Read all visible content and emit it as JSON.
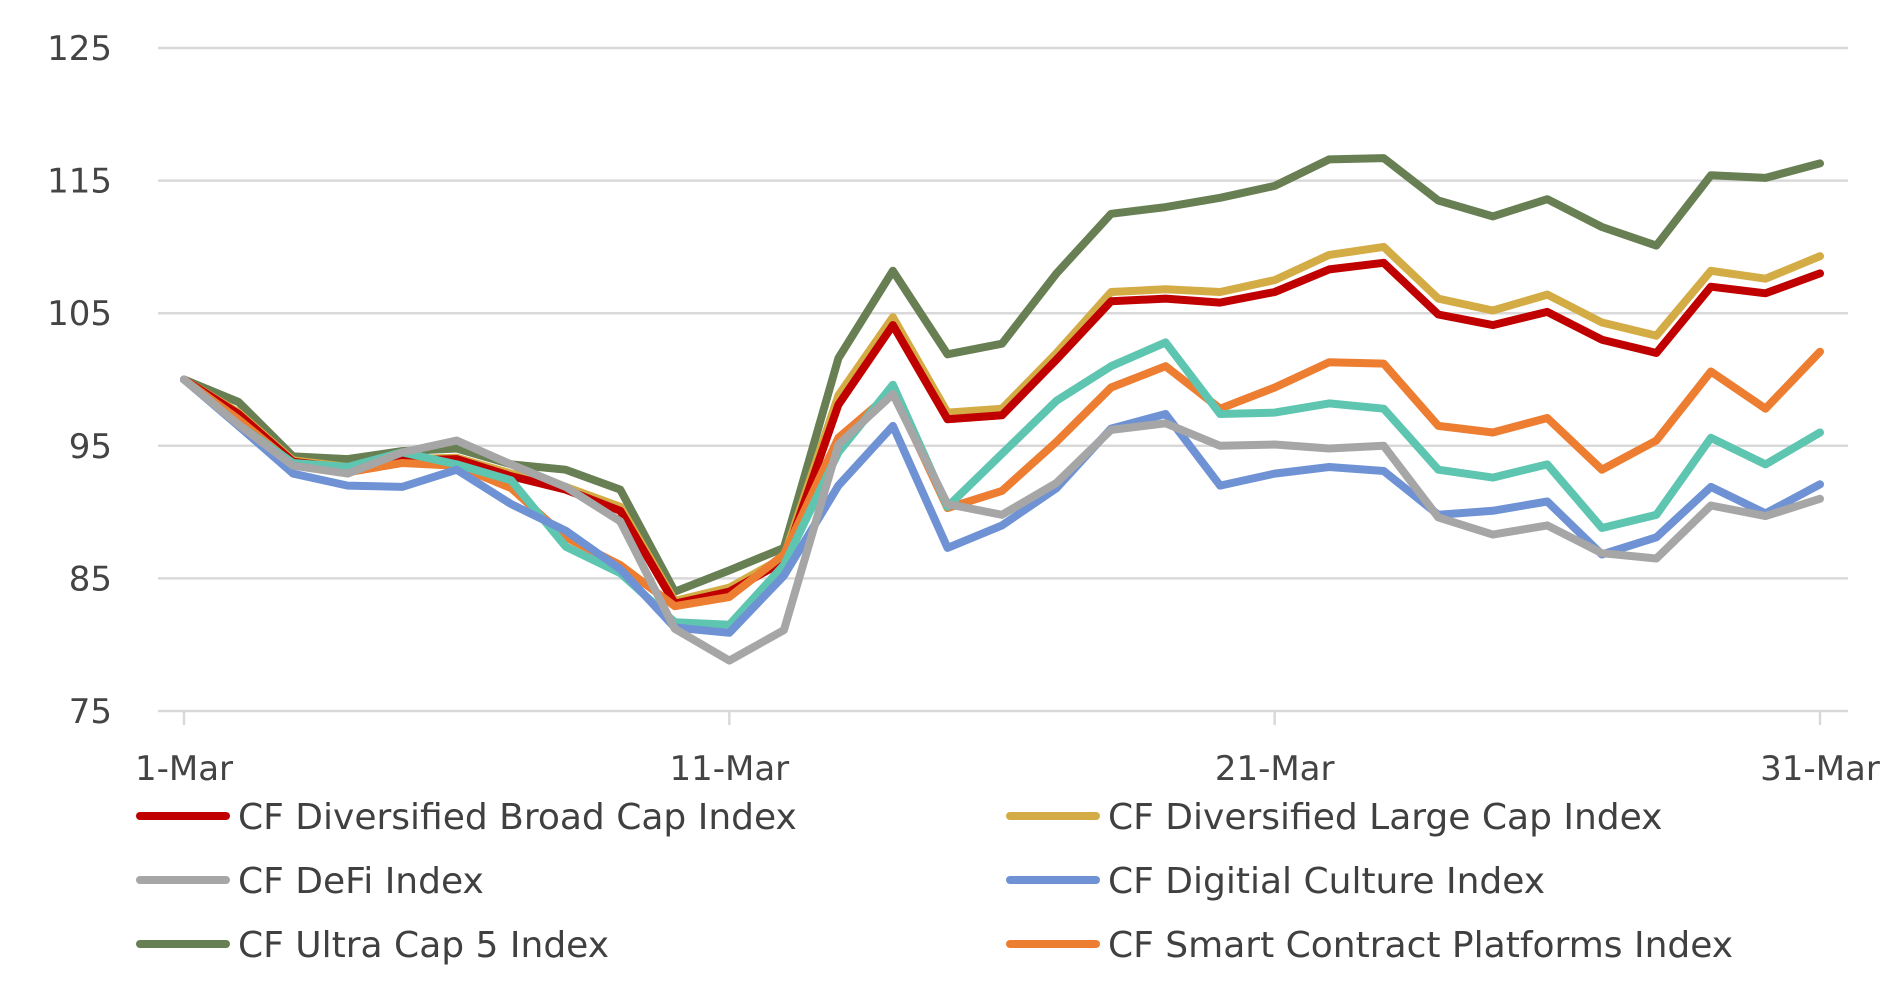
{
  "chart_data": {
    "type": "line",
    "title": "",
    "xlabel": "",
    "ylabel": "",
    "ylim": [
      75,
      125
    ],
    "yticks": [
      75,
      85,
      95,
      105,
      115,
      125
    ],
    "xlim": [
      1,
      31
    ],
    "xticks": [
      {
        "day": 1,
        "label": "1-Mar"
      },
      {
        "day": 11,
        "label": "11-Mar"
      },
      {
        "day": 21,
        "label": "21-Mar"
      },
      {
        "day": 31,
        "label": "31-Mar"
      }
    ],
    "grid": true,
    "legend_position": "bottom",
    "x": [
      1,
      2,
      3,
      4,
      5,
      6,
      7,
      8,
      9,
      10,
      11,
      12,
      13,
      14,
      15,
      16,
      17,
      18,
      19,
      20,
      21,
      22,
      23,
      24,
      25,
      26,
      27,
      28,
      29,
      30,
      31
    ],
    "series": [
      {
        "name": "CF Ultra Cap 5 Index",
        "color": "#677f53",
        "values": [
          100,
          98.3,
          94.2,
          94.0,
          94.6,
          94.8,
          93.6,
          93.2,
          91.7,
          84.0,
          85.6,
          87.3,
          101.6,
          108.2,
          101.9,
          102.7,
          108.0,
          112.5,
          113.0,
          113.7,
          114.6,
          116.6,
          116.7,
          113.5,
          112.3,
          113.6,
          111.5,
          110.1,
          115.4,
          115.2,
          116.3
        ]
      },
      {
        "name": "CF Diversified Large Cap Index",
        "color": "#d4ac45",
        "values": [
          100,
          97.5,
          93.9,
          93.4,
          94.0,
          94.1,
          92.9,
          91.9,
          90.4,
          83.3,
          84.3,
          86.6,
          98.8,
          104.7,
          97.5,
          97.8,
          102.0,
          106.6,
          106.8,
          106.6,
          107.5,
          109.4,
          110.0,
          106.1,
          105.2,
          106.4,
          104.3,
          103.3,
          108.2,
          107.6,
          109.3
        ]
      },
      {
        "name": "CF Diversified Broad Cap Index",
        "color": "#c00000",
        "values": [
          100,
          97.4,
          93.8,
          93.3,
          93.9,
          94.0,
          92.7,
          91.7,
          90.1,
          83.1,
          84.0,
          86.3,
          98.1,
          104.1,
          97.0,
          97.3,
          101.5,
          105.9,
          106.1,
          105.8,
          106.6,
          108.3,
          108.8,
          104.9,
          104.1,
          105.1,
          103.0,
          102.0,
          107.0,
          106.5,
          108.0
        ]
      },
      {
        "name": "CF Smart Contract Platforms Index",
        "color": "#ed7d31",
        "values": [
          100,
          97.0,
          93.6,
          93.0,
          93.7,
          93.5,
          91.8,
          88.1,
          86.0,
          82.9,
          83.6,
          86.8,
          95.6,
          99.1,
          90.3,
          91.6,
          95.3,
          99.4,
          101.0,
          97.8,
          99.4,
          101.3,
          101.2,
          96.5,
          96.0,
          97.1,
          93.2,
          95.4,
          100.6,
          97.8,
          102.1
        ]
      },
      {
        "name": "",
        "color": "#5dc5b0",
        "values": [
          100,
          96.6,
          93.7,
          93.4,
          94.5,
          93.6,
          92.4,
          87.4,
          85.4,
          81.7,
          81.5,
          86.0,
          94.5,
          99.6,
          90.4,
          94.4,
          98.4,
          101.0,
          102.8,
          97.4,
          97.5,
          98.2,
          97.8,
          93.2,
          92.6,
          93.6,
          88.8,
          89.8,
          95.6,
          93.6,
          96.0
        ]
      },
      {
        "name": "CF Digitial Culture Index",
        "color": "#6f92d4",
        "values": [
          100,
          96.5,
          92.9,
          92.0,
          91.9,
          93.2,
          90.6,
          88.6,
          85.7,
          81.3,
          80.9,
          85.2,
          92.0,
          96.5,
          87.3,
          89.0,
          91.8,
          96.3,
          97.4,
          92.0,
          92.9,
          93.4,
          93.1,
          89.8,
          90.1,
          90.8,
          86.8,
          88.1,
          91.9,
          89.9,
          92.1
        ]
      },
      {
        "name": "CF DeFi Index",
        "color": "#a6a6a6",
        "values": [
          100,
          96.6,
          93.5,
          92.9,
          94.5,
          95.4,
          93.6,
          91.9,
          89.3,
          81.2,
          78.8,
          81.1,
          95.1,
          98.9,
          90.6,
          89.8,
          92.2,
          96.2,
          96.7,
          95.0,
          95.1,
          94.8,
          95.0,
          89.6,
          88.3,
          89.0,
          86.9,
          86.5,
          90.5,
          89.7,
          91.0
        ]
      }
    ],
    "legend": [
      {
        "name": "CF Diversified Broad Cap Index",
        "color": "#c00000"
      },
      {
        "name": "CF Diversified Large Cap Index",
        "color": "#d4ac45"
      },
      {
        "name": "CF DeFi Index",
        "color": "#a6a6a6"
      },
      {
        "name": "CF Digitial Culture Index",
        "color": "#6f92d4"
      },
      {
        "name": "CF Ultra Cap 5 Index",
        "color": "#677f53"
      },
      {
        "name": "CF Smart Contract Platforms Index",
        "color": "#ed7d31"
      }
    ]
  }
}
